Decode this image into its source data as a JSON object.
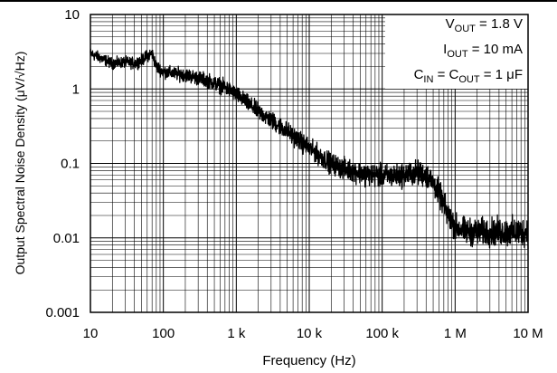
{
  "chart_data": {
    "type": "line",
    "xlabel": "Frequency (Hz)",
    "ylabel": "Output Spectral Noise Density (μV/√Hz)",
    "x_scale": "log",
    "y_scale": "log",
    "xlim": [
      10,
      10000000
    ],
    "ylim": [
      0.001,
      10
    ],
    "grid": true,
    "x_ticks": [
      10,
      100,
      1000,
      10000,
      100000,
      1000000,
      10000000
    ],
    "x_tick_labels": [
      "10",
      "100",
      "1 k",
      "10 k",
      "100 k",
      "1 M",
      "10 M"
    ],
    "y_ticks": [
      10,
      1,
      0.1,
      0.01,
      0.001
    ],
    "y_tick_labels": [
      "10",
      "1",
      "0.1",
      "0.01",
      "0.001"
    ],
    "annotations": [
      {
        "main": "V",
        "sub": "OUT",
        "rest": " = 1.8 V"
      },
      {
        "main": "I",
        "sub": "OUT",
        "rest": " = 10 mA"
      },
      {
        "main": "C",
        "sub": "IN",
        "mid": " = C",
        "sub2": "OUT",
        "rest": " = 1 μF"
      }
    ],
    "series": [
      {
        "color": "#000000",
        "x": [
          10,
          15,
          20,
          30,
          40,
          50,
          60,
          70,
          80,
          100,
          150,
          200,
          300,
          400,
          500,
          700,
          1000,
          1500,
          2000,
          3000,
          5000,
          7000,
          10000,
          15000,
          20000,
          30000,
          50000,
          70000,
          100000,
          150000,
          200000,
          300000,
          400000,
          500000,
          600000,
          700000,
          800000,
          1000000,
          1500000,
          2000000,
          3000000,
          5000000,
          7000000,
          10000000
        ],
        "y": [
          3.0,
          2.5,
          2.2,
          2.3,
          2.2,
          2.4,
          2.8,
          3.0,
          2.0,
          1.7,
          1.6,
          1.55,
          1.4,
          1.3,
          1.2,
          1.05,
          0.85,
          0.62,
          0.5,
          0.38,
          0.27,
          0.21,
          0.16,
          0.12,
          0.1,
          0.085,
          0.075,
          0.07,
          0.068,
          0.068,
          0.07,
          0.075,
          0.07,
          0.055,
          0.04,
          0.028,
          0.02,
          0.014,
          0.012,
          0.012,
          0.012,
          0.012,
          0.012,
          0.012
        ]
      }
    ]
  }
}
